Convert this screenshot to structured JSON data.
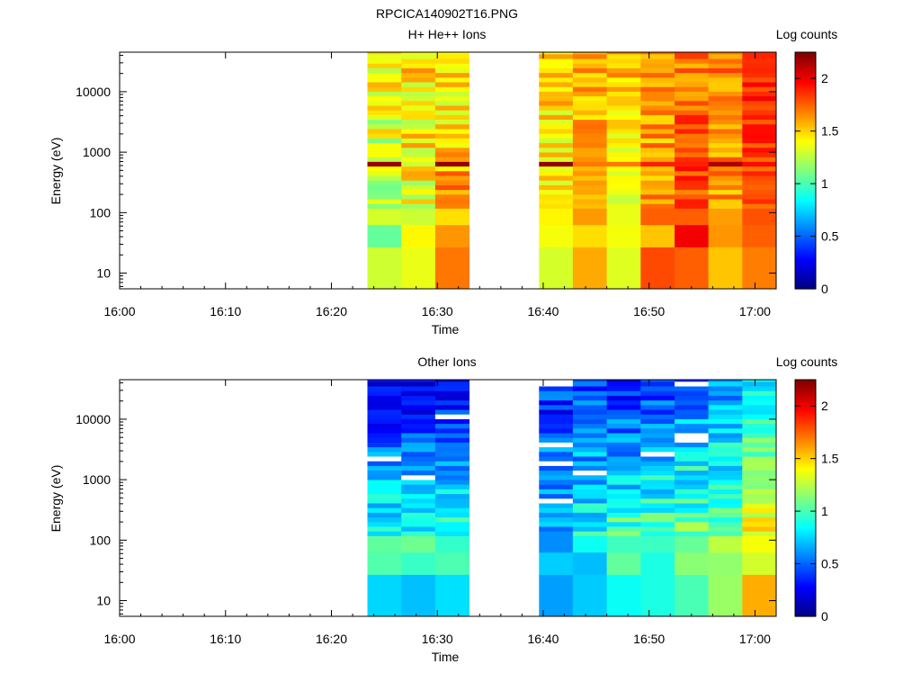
{
  "figure_title": "RPCICA140902T16.PNG",
  "colormap": [
    "#00007f",
    "#0000ff",
    "#007fff",
    "#00ffff",
    "#7fff7f",
    "#ffff00",
    "#ff7f00",
    "#ff0000",
    "#7f0000"
  ],
  "chart_data": [
    {
      "type": "heatmap",
      "title": "H+ He++ Ions",
      "xlabel": "Time",
      "ylabel": "Energy (eV)",
      "x_range_minutes": [
        0,
        62
      ],
      "x_ticks": [
        {
          "minute": 0,
          "label": "16:00"
        },
        {
          "minute": 10,
          "label": "16:10"
        },
        {
          "minute": 20,
          "label": "16:20"
        },
        {
          "minute": 30,
          "label": "16:30"
        },
        {
          "minute": 40,
          "label": "16:40"
        },
        {
          "minute": 50,
          "label": "16:50"
        },
        {
          "minute": 60,
          "label": "17:00"
        }
      ],
      "y_scale": "log",
      "y_range": [
        5.5,
        45000
      ],
      "y_ticks": [
        {
          "value": 10,
          "label": "10"
        },
        {
          "value": 100,
          "label": "100"
        },
        {
          "value": 1000,
          "label": "1000"
        },
        {
          "value": 10000,
          "label": "10000"
        }
      ],
      "colorbar": {
        "label": "Log counts",
        "range": [
          0,
          2.25
        ],
        "ticks": [
          {
            "value": 0,
            "label": "0"
          },
          {
            "value": 0.5,
            "label": "0.5"
          },
          {
            "value": 1,
            "label": "1"
          },
          {
            "value": 1.5,
            "label": "1.5"
          },
          {
            "value": 2,
            "label": "2"
          }
        ]
      },
      "column_times_minutes": [
        23.4,
        26.6,
        29.8,
        39.6,
        42.8,
        46.0,
        49.2,
        52.4,
        55.6,
        58.8
      ],
      "column_width_minutes": 3.2,
      "columns": [
        {
          "a": 1.2,
          "b": 1.45,
          "s": 0.23,
          "p": 2.2
        },
        {
          "a": 1.35,
          "b": 1.5,
          "s": 0.22,
          "p": 1.3
        },
        {
          "a": 1.65,
          "b": 1.4,
          "s": 0.2,
          "p": 2.2
        },
        {
          "a": 1.4,
          "b": 1.5,
          "s": 0.18,
          "p": 2.2
        },
        {
          "a": 1.55,
          "b": 1.6,
          "s": 0.15,
          "p": 1.7
        },
        {
          "a": 1.25,
          "b": 1.6,
          "s": 0.16,
          "p": 1.7
        },
        {
          "a": 1.65,
          "b": 1.6,
          "s": 0.17,
          "p": 1.9
        },
        {
          "a": 1.85,
          "b": 1.7,
          "s": 0.16,
          "p": 1.9
        },
        {
          "a": 1.6,
          "b": 1.7,
          "s": 0.17,
          "p": 2.15
        },
        {
          "a": 1.8,
          "b": 1.9,
          "s": 0.12,
          "p": 1.95
        }
      ]
    },
    {
      "type": "heatmap",
      "title": "Other Ions",
      "xlabel": "Time",
      "ylabel": "Energy (eV)",
      "x_range_minutes": [
        0,
        62
      ],
      "x_ticks": [
        {
          "minute": 0,
          "label": "16:00"
        },
        {
          "minute": 10,
          "label": "16:10"
        },
        {
          "minute": 20,
          "label": "16:20"
        },
        {
          "minute": 30,
          "label": "16:30"
        },
        {
          "minute": 40,
          "label": "16:40"
        },
        {
          "minute": 50,
          "label": "16:50"
        },
        {
          "minute": 60,
          "label": "17:00"
        }
      ],
      "y_scale": "log",
      "y_range": [
        5.5,
        45000
      ],
      "y_ticks": [
        {
          "value": 10,
          "label": "10"
        },
        {
          "value": 100,
          "label": "100"
        },
        {
          "value": 1000,
          "label": "1000"
        },
        {
          "value": 10000,
          "label": "10000"
        }
      ],
      "colorbar": {
        "label": "Log counts",
        "range": [
          0,
          2.25
        ],
        "ticks": [
          {
            "value": 0,
            "label": "0"
          },
          {
            "value": 0.5,
            "label": "0.5"
          },
          {
            "value": 1,
            "label": "1"
          },
          {
            "value": 1.5,
            "label": "1.5"
          },
          {
            "value": 2,
            "label": "2"
          }
        ]
      },
      "column_times_minutes": [
        23.4,
        26.6,
        29.8,
        39.6,
        42.8,
        46.0,
        49.2,
        52.4,
        55.6,
        58.8
      ],
      "column_width_minutes": 3.2,
      "columns": [
        {
          "a": 0.95,
          "b": 0.2,
          "s": 0.2,
          "w": 0.06
        },
        {
          "a": 0.9,
          "b": 0.25,
          "s": 0.2,
          "w": 0.07
        },
        {
          "a": 0.95,
          "b": 0.3,
          "s": 0.2,
          "w": 0.07
        },
        {
          "a": 0.75,
          "b": 0.35,
          "s": 0.22,
          "w": 0.07
        },
        {
          "a": 0.9,
          "b": 0.45,
          "s": 0.22,
          "w": 0.05
        },
        {
          "a": 1.05,
          "b": 0.35,
          "s": 0.22,
          "w": 0.06
        },
        {
          "a": 1.05,
          "b": 0.4,
          "s": 0.22,
          "w": 0.05
        },
        {
          "a": 1.1,
          "b": 0.5,
          "s": 0.22,
          "w": 0.05
        },
        {
          "a": 1.05,
          "b": 0.6,
          "s": 0.22,
          "w": 0.05
        },
        {
          "a": 1.45,
          "b": 0.8,
          "s": 0.15,
          "w": 0.0
        }
      ]
    }
  ]
}
